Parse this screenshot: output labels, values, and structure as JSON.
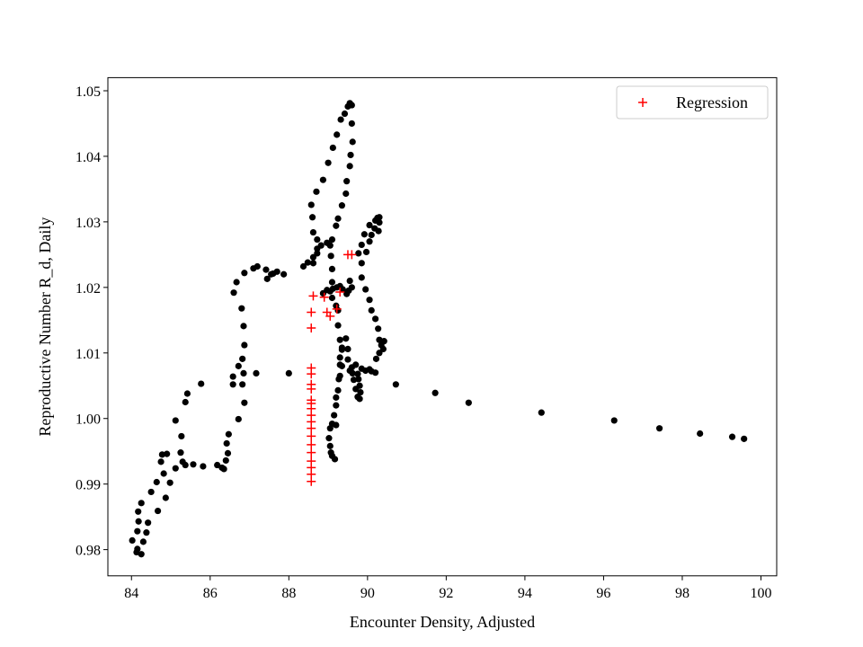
{
  "chart_data": {
    "type": "scatter",
    "title": "",
    "xlabel": "Encounter Density, Adjusted",
    "ylabel": "Reproductive Number R_d, Daily",
    "xlim": [
      83.4,
      100.4
    ],
    "ylim": [
      0.976,
      1.052
    ],
    "x_ticks": [
      84,
      86,
      88,
      90,
      92,
      94,
      96,
      98,
      100
    ],
    "y_ticks": [
      0.98,
      0.99,
      1.0,
      1.01,
      1.02,
      1.03,
      1.04,
      1.05
    ],
    "y_tick_labels": [
      "0.98",
      "0.99",
      "1.00",
      "1.01",
      "1.02",
      "1.03",
      "1.04",
      "1.05"
    ],
    "grid": false,
    "legend_position": "top-right",
    "series": [
      {
        "name": "",
        "marker": "circle",
        "color": "#000000",
        "points": [
          [
            84.02,
            0.9814
          ],
          [
            84.13,
            0.9796
          ],
          [
            84.15,
            0.9801
          ],
          [
            84.25,
            0.9793
          ],
          [
            84.15,
            0.9828
          ],
          [
            84.18,
            0.9843
          ],
          [
            84.17,
            0.9858
          ],
          [
            84.25,
            0.9871
          ],
          [
            84.42,
            0.9841
          ],
          [
            84.3,
            0.9812
          ],
          [
            84.38,
            0.9826
          ],
          [
            84.5,
            0.9888
          ],
          [
            84.64,
            0.9903
          ],
          [
            84.75,
            0.9934
          ],
          [
            84.78,
            0.9945
          ],
          [
            84.9,
            0.9946
          ],
          [
            84.82,
            0.9916
          ],
          [
            84.87,
            0.9879
          ],
          [
            84.67,
            0.9859
          ],
          [
            84.98,
            0.9902
          ],
          [
            85.12,
            0.9924
          ],
          [
            85.12,
            0.9997
          ],
          [
            85.25,
            0.9948
          ],
          [
            85.3,
            0.9934
          ],
          [
            85.37,
            0.9929
          ],
          [
            85.57,
            0.993
          ],
          [
            85.27,
            0.9973
          ],
          [
            85.37,
            1.0025
          ],
          [
            85.42,
            1.0038
          ],
          [
            85.82,
            0.9927
          ],
          [
            85.77,
            1.0053
          ],
          [
            86.18,
            0.9929
          ],
          [
            86.3,
            0.9925
          ],
          [
            86.35,
            0.9923
          ],
          [
            86.4,
            0.9936
          ],
          [
            86.45,
            0.9947
          ],
          [
            86.42,
            0.9962
          ],
          [
            86.47,
            0.9976
          ],
          [
            86.58,
            1.0052
          ],
          [
            86.58,
            1.0064
          ],
          [
            86.72,
            0.9999
          ],
          [
            86.87,
            1.0024
          ],
          [
            86.82,
            1.0052
          ],
          [
            86.72,
            1.008
          ],
          [
            86.85,
            1.0069
          ],
          [
            86.82,
            1.0091
          ],
          [
            86.87,
            1.0112
          ],
          [
            86.85,
            1.0141
          ],
          [
            86.8,
            1.0168
          ],
          [
            86.6,
            1.0192
          ],
          [
            86.67,
            1.0208
          ],
          [
            86.87,
            1.0222
          ],
          [
            87.1,
            1.0229
          ],
          [
            87.2,
            1.0232
          ],
          [
            87.42,
            1.0227
          ],
          [
            87.55,
            1.022
          ],
          [
            87.45,
            1.0213
          ],
          [
            87.6,
            1.0221
          ],
          [
            87.7,
            1.0224
          ],
          [
            87.87,
            1.022
          ],
          [
            87.17,
            1.0069
          ],
          [
            88.0,
            1.0069
          ],
          [
            88.37,
            1.0232
          ],
          [
            88.48,
            1.0238
          ],
          [
            88.62,
            1.0246
          ],
          [
            88.72,
            1.0259
          ],
          [
            88.72,
            1.0273
          ],
          [
            88.62,
            1.0284
          ],
          [
            88.6,
            1.0307
          ],
          [
            88.57,
            1.0326
          ],
          [
            88.7,
            1.0346
          ],
          [
            88.87,
            1.0364
          ],
          [
            89.0,
            1.039
          ],
          [
            89.12,
            1.0413
          ],
          [
            89.22,
            1.0433
          ],
          [
            89.32,
            1.0456
          ],
          [
            89.42,
            1.0465
          ],
          [
            89.5,
            1.0476
          ],
          [
            89.55,
            1.0481
          ],
          [
            89.6,
            1.0478
          ],
          [
            89.6,
            1.045
          ],
          [
            89.62,
            1.0422
          ],
          [
            89.57,
            1.0402
          ],
          [
            89.55,
            1.0385
          ],
          [
            89.47,
            1.0362
          ],
          [
            89.45,
            1.0343
          ],
          [
            89.35,
            1.0325
          ],
          [
            89.25,
            1.0305
          ],
          [
            89.2,
            1.0294
          ],
          [
            89.1,
            1.0273
          ],
          [
            88.97,
            1.0268
          ],
          [
            88.82,
            1.0264
          ],
          [
            88.72,
            1.0252
          ],
          [
            88.62,
            1.0237
          ],
          [
            89.05,
            1.0264
          ],
          [
            89.07,
            1.0248
          ],
          [
            89.1,
            1.0228
          ],
          [
            89.1,
            1.0208
          ],
          [
            89.05,
            1.0194
          ],
          [
            89.1,
            1.0184
          ],
          [
            89.2,
            1.0172
          ],
          [
            89.25,
            1.0165
          ],
          [
            89.25,
            1.0142
          ],
          [
            89.3,
            1.012
          ],
          [
            89.35,
            1.0105
          ],
          [
            89.3,
            1.0093
          ],
          [
            89.35,
            1.008
          ],
          [
            89.3,
            1.0065
          ],
          [
            89.25,
            1.0043
          ],
          [
            89.2,
            1.002
          ],
          [
            89.15,
            1.0005
          ],
          [
            89.1,
            0.9992
          ],
          [
            89.05,
            0.9985
          ],
          [
            89.02,
            0.997
          ],
          [
            89.05,
            0.9958
          ],
          [
            89.07,
            0.9948
          ],
          [
            89.1,
            0.9943
          ],
          [
            89.17,
            0.9938
          ],
          [
            89.2,
            0.999
          ],
          [
            89.2,
            1.0032
          ],
          [
            89.27,
            1.006
          ],
          [
            89.3,
            1.0082
          ],
          [
            89.35,
            1.0108
          ],
          [
            89.45,
            1.0122
          ],
          [
            89.5,
            1.0106
          ],
          [
            89.5,
            1.009
          ],
          [
            89.55,
            1.0073
          ],
          [
            89.62,
            1.0069
          ],
          [
            89.65,
            1.0059
          ],
          [
            89.7,
            1.0045
          ],
          [
            89.75,
            1.0033
          ],
          [
            89.8,
            1.003
          ],
          [
            89.8,
            1.005
          ],
          [
            89.75,
            1.0068
          ],
          [
            89.85,
            1.0076
          ],
          [
            89.95,
            1.0073
          ],
          [
            90.05,
            1.0075
          ],
          [
            90.1,
            1.0072
          ],
          [
            90.2,
            1.007
          ],
          [
            90.22,
            1.0091
          ],
          [
            90.3,
            1.01
          ],
          [
            90.35,
            1.0112
          ],
          [
            90.42,
            1.0118
          ],
          [
            90.4,
            1.0106
          ],
          [
            90.3,
            1.012
          ],
          [
            90.27,
            1.0137
          ],
          [
            90.2,
            1.0152
          ],
          [
            90.1,
            1.0165
          ],
          [
            90.05,
            1.0181
          ],
          [
            89.95,
            1.0197
          ],
          [
            89.85,
            1.0215
          ],
          [
            89.85,
            1.0237
          ],
          [
            89.97,
            1.0254
          ],
          [
            90.05,
            1.027
          ],
          [
            90.1,
            1.028
          ],
          [
            90.18,
            1.029
          ],
          [
            90.2,
            1.0302
          ],
          [
            90.25,
            1.0306
          ],
          [
            90.3,
            1.0307
          ],
          [
            90.3,
            1.0299
          ],
          [
            90.28,
            1.0286
          ],
          [
            90.05,
            1.0295
          ],
          [
            89.92,
            1.0281
          ],
          [
            89.85,
            1.0265
          ],
          [
            89.77,
            1.0252
          ],
          [
            89.6,
            1.02
          ],
          [
            89.52,
            1.0195
          ],
          [
            89.47,
            1.019
          ],
          [
            89.37,
            1.0197
          ],
          [
            89.3,
            1.0202
          ],
          [
            89.22,
            1.02
          ],
          [
            89.12,
            1.0198
          ],
          [
            88.97,
            1.0196
          ],
          [
            88.87,
            1.0191
          ],
          [
            89.55,
            1.021
          ],
          [
            89.6,
            1.0078
          ],
          [
            89.7,
            1.0082
          ],
          [
            89.77,
            1.006
          ],
          [
            89.82,
            1.004
          ],
          [
            90.72,
            1.0052
          ],
          [
            91.72,
            1.0039
          ],
          [
            92.57,
            1.0024
          ],
          [
            94.42,
            1.0009
          ],
          [
            96.27,
            0.9997
          ],
          [
            97.42,
            0.9985
          ],
          [
            98.45,
            0.9977
          ],
          [
            99.27,
            0.9972
          ],
          [
            99.57,
            0.9969
          ]
        ]
      },
      {
        "name": "Regression",
        "marker": "plus",
        "color": "#ff0000",
        "points": [
          [
            88.57,
            0.9904
          ],
          [
            88.57,
            0.9915
          ],
          [
            88.57,
            0.9925
          ],
          [
            88.57,
            0.9935
          ],
          [
            88.57,
            0.9948
          ],
          [
            88.57,
            0.996
          ],
          [
            88.57,
            0.9973
          ],
          [
            88.57,
            0.9985
          ],
          [
            88.57,
            0.9995
          ],
          [
            88.57,
            1.0005
          ],
          [
            88.57,
            1.0015
          ],
          [
            88.57,
            1.0023
          ],
          [
            88.57,
            1.0028
          ],
          [
            88.57,
            1.0045
          ],
          [
            88.57,
            1.0052
          ],
          [
            88.57,
            1.0068
          ],
          [
            88.57,
            1.0077
          ],
          [
            88.57,
            1.0138
          ],
          [
            88.57,
            1.0162
          ],
          [
            88.62,
            1.0187
          ],
          [
            88.9,
            1.0185
          ],
          [
            89.3,
            1.0193
          ],
          [
            88.97,
            1.0162
          ],
          [
            89.05,
            1.0156
          ],
          [
            89.22,
            1.0167
          ],
          [
            89.5,
            1.025
          ],
          [
            89.6,
            1.025
          ]
        ]
      }
    ]
  }
}
